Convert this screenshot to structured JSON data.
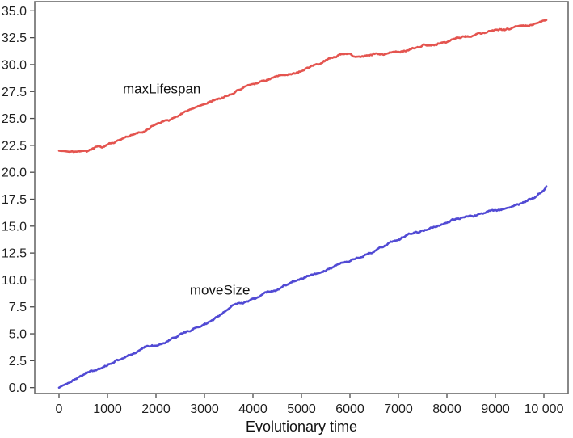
{
  "chart_data": {
    "type": "line",
    "title": "",
    "xlabel": "Evolutionary time",
    "ylabel": "",
    "xlim": [
      -500,
      10500
    ],
    "ylim": [
      -0.55,
      35.85
    ],
    "grid": false,
    "legend_position": "inline-labels",
    "x_ticks": [
      0,
      1000,
      2000,
      3000,
      4000,
      5000,
      6000,
      7000,
      8000,
      9000,
      10000
    ],
    "x_tick_labels": [
      "0",
      "1000",
      "2000",
      "3000",
      "4000",
      "5000",
      "6000",
      "7000",
      "8000",
      "9000",
      "10 000"
    ],
    "y_ticks": [
      0,
      2.5,
      5,
      7.5,
      10,
      12.5,
      15,
      17.5,
      20,
      22.5,
      25,
      27.5,
      30,
      32.5,
      35
    ],
    "y_tick_labels": [
      "0.0",
      "2.5",
      "5.0",
      "7.5",
      "10.0",
      "12.5",
      "15.0",
      "17.5",
      "20.0",
      "22.5",
      "25.0",
      "27.5",
      "30.0",
      "32.5",
      "35.0"
    ],
    "panel_border_color": "#6b6b6b",
    "tick_color": "#4a4a4a",
    "series": [
      {
        "name": "maxLifespan",
        "color": "#e4544f",
        "label": "maxLifespan",
        "label_at": [
          2120,
          27.8
        ],
        "points": [
          [
            0,
            22.0
          ],
          [
            300,
            22.0
          ],
          [
            500,
            21.95
          ],
          [
            650,
            22.05
          ],
          [
            800,
            22.3
          ],
          [
            900,
            22.25
          ],
          [
            1000,
            22.5
          ],
          [
            1200,
            22.8
          ],
          [
            1400,
            23.2
          ],
          [
            1600,
            23.5
          ],
          [
            1800,
            23.9
          ],
          [
            2000,
            24.4
          ],
          [
            2200,
            24.7
          ],
          [
            2400,
            25.0
          ],
          [
            2600,
            25.5
          ],
          [
            2800,
            25.9
          ],
          [
            3000,
            26.2
          ],
          [
            3200,
            26.6
          ],
          [
            3400,
            26.9
          ],
          [
            3600,
            27.3
          ],
          [
            3800,
            27.8
          ],
          [
            4000,
            28.1
          ],
          [
            4200,
            28.4
          ],
          [
            4400,
            28.8
          ],
          [
            4600,
            29.0
          ],
          [
            4800,
            29.2
          ],
          [
            5000,
            29.5
          ],
          [
            5200,
            29.9
          ],
          [
            5400,
            30.2
          ],
          [
            5600,
            30.5
          ],
          [
            5800,
            30.85
          ],
          [
            6000,
            30.9
          ],
          [
            6100,
            30.7
          ],
          [
            6300,
            30.8
          ],
          [
            6500,
            30.9
          ],
          [
            6750,
            31.0
          ],
          [
            7000,
            31.1
          ],
          [
            7250,
            31.4
          ],
          [
            7500,
            31.7
          ],
          [
            7750,
            31.9
          ],
          [
            8000,
            32.2
          ],
          [
            8250,
            32.5
          ],
          [
            8500,
            32.7
          ],
          [
            8750,
            32.9
          ],
          [
            9000,
            33.1
          ],
          [
            9250,
            33.3
          ],
          [
            9500,
            33.5
          ],
          [
            9700,
            33.5
          ],
          [
            9850,
            33.7
          ],
          [
            10000,
            34.0
          ],
          [
            10050,
            34.1
          ]
        ]
      },
      {
        "name": "moveSize",
        "color": "#514ad4",
        "label": "moveSize",
        "label_at": [
          3320,
          9.1
        ],
        "points": [
          [
            0,
            0.0
          ],
          [
            200,
            0.5
          ],
          [
            400,
            1.0
          ],
          [
            600,
            1.35
          ],
          [
            800,
            1.8
          ],
          [
            1000,
            2.2
          ],
          [
            1200,
            2.6
          ],
          [
            1400,
            3.0
          ],
          [
            1600,
            3.4
          ],
          [
            1800,
            3.8
          ],
          [
            2000,
            4.0
          ],
          [
            2150,
            4.2
          ],
          [
            2300,
            4.5
          ],
          [
            2500,
            4.85
          ],
          [
            2700,
            5.2
          ],
          [
            2900,
            5.6
          ],
          [
            3100,
            6.0
          ],
          [
            3300,
            6.6
          ],
          [
            3500,
            7.3
          ],
          [
            3650,
            7.7
          ],
          [
            3800,
            7.8
          ],
          [
            4000,
            8.3
          ],
          [
            4200,
            8.7
          ],
          [
            4400,
            9.0
          ],
          [
            4600,
            9.4
          ],
          [
            4800,
            9.9
          ],
          [
            5000,
            10.2
          ],
          [
            5200,
            10.4
          ],
          [
            5400,
            10.8
          ],
          [
            5600,
            11.1
          ],
          [
            5800,
            11.5
          ],
          [
            6000,
            11.7
          ],
          [
            6200,
            12.1
          ],
          [
            6400,
            12.5
          ],
          [
            6600,
            13.0
          ],
          [
            6800,
            13.4
          ],
          [
            7000,
            13.6
          ],
          [
            7200,
            14.2
          ],
          [
            7400,
            14.5
          ],
          [
            7600,
            14.8
          ],
          [
            7800,
            15.1
          ],
          [
            8000,
            15.4
          ],
          [
            8250,
            15.6
          ],
          [
            8500,
            15.9
          ],
          [
            8750,
            16.2
          ],
          [
            9000,
            16.5
          ],
          [
            9250,
            16.8
          ],
          [
            9500,
            17.1
          ],
          [
            9700,
            17.5
          ],
          [
            9850,
            17.8
          ],
          [
            10000,
            18.3
          ],
          [
            10050,
            18.7
          ]
        ]
      }
    ]
  }
}
